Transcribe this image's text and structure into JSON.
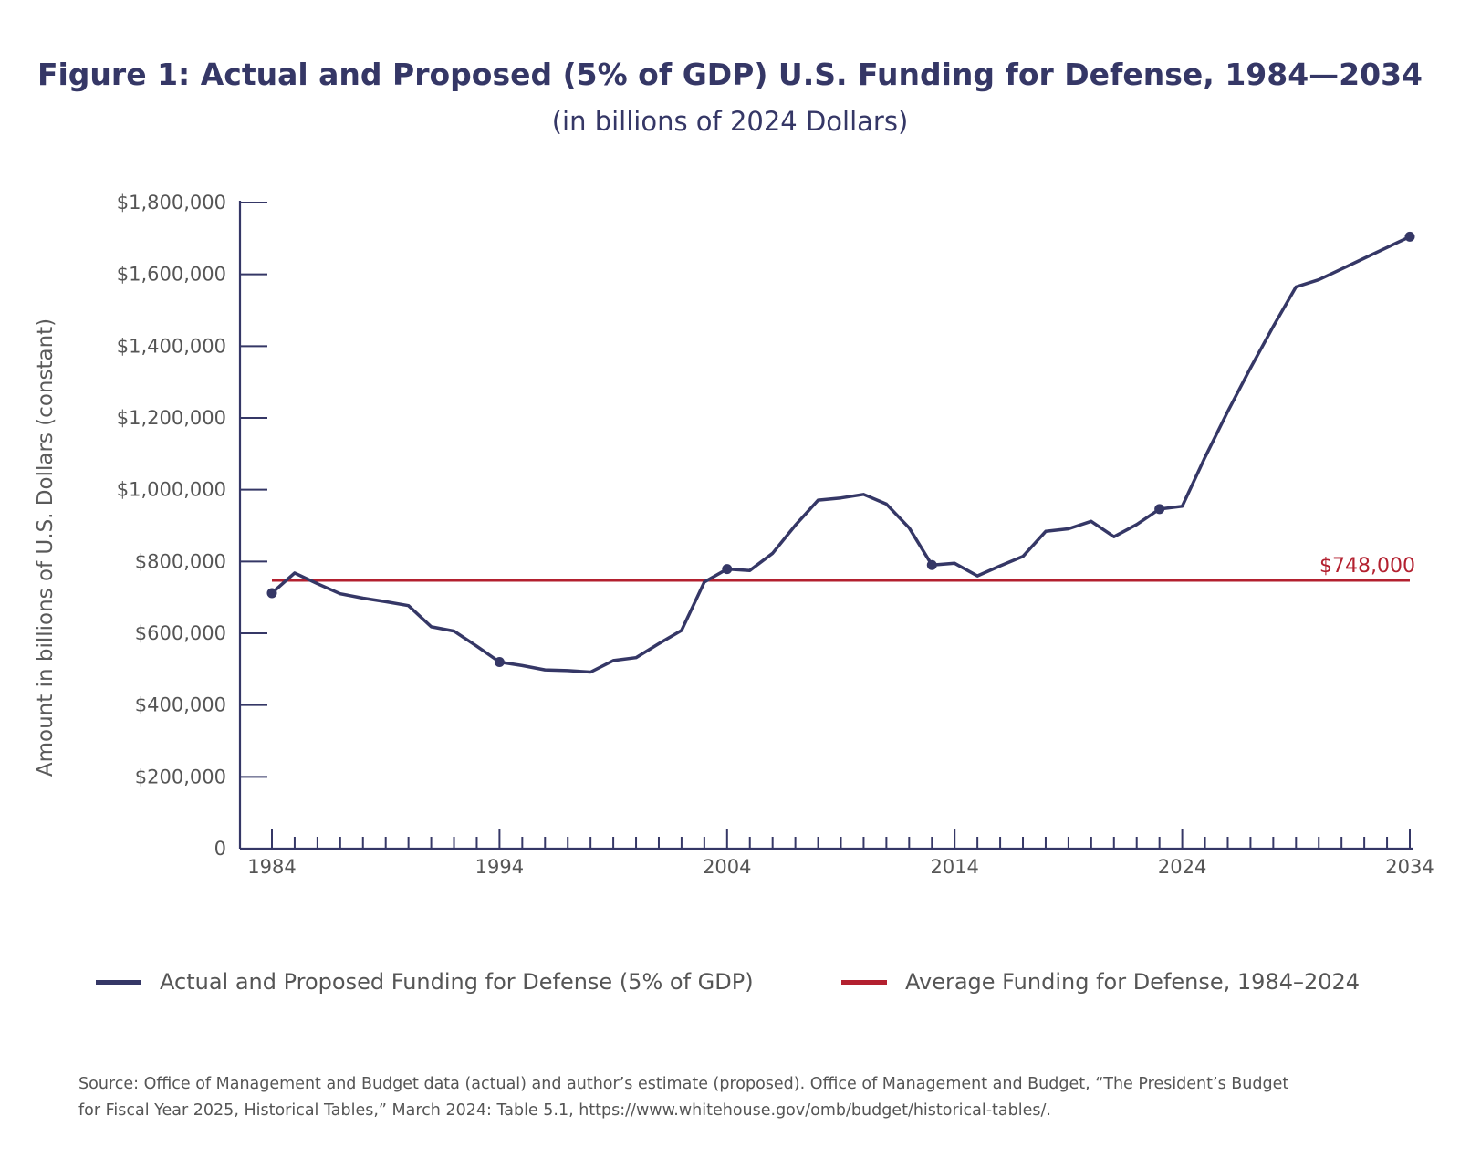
{
  "title": "Figure 1: Actual and Proposed (5% of GDP) U.S. Funding for Defense, 1984—2034",
  "subtitle": "(in billions of 2024 Dollars)",
  "legend": {
    "series_label": "Actual and Proposed Funding for Defense (5% of GDP)",
    "average_label": "Average Funding for Defense, 1984–2024"
  },
  "source": {
    "line1": "Source: Office of Management and Budget data (actual) and author’s estimate (proposed). Office of Management and Budget, “The President’s Budget",
    "line2": "for Fiscal Year 2025, Historical Tables,” March 2024: Table 5.1, https://www.whitehouse.gov/omb/budget/historical-tables/."
  },
  "colors": {
    "series": "#353766",
    "average": "#b3202f",
    "axis": "#353766",
    "text": "#555555"
  },
  "chart_data": {
    "type": "line",
    "ylabel": "Amount in billions of U.S. Dollars (constant)",
    "xlabel": "",
    "xlim": [
      1984,
      2034
    ],
    "ylim": [
      0,
      1800000
    ],
    "x_ticks": [
      "1984",
      "1994",
      "2004",
      "2014",
      "2024",
      "2034"
    ],
    "y_ticks": [
      "0",
      "$200,000",
      "$400,000",
      "$600,000",
      "$800,000",
      "$1,000,000",
      "$1,200,000",
      "$1,400,000",
      "$1,600,000",
      "$1,800,000"
    ],
    "grid": false,
    "legend_position": "bottom",
    "series": [
      {
        "name": "Actual and Proposed Funding for Defense (5% of GDP)",
        "x": [
          1984,
          1985,
          1986,
          1987,
          1988,
          1989,
          1990,
          1991,
          1992,
          1993,
          1994,
          1995,
          1996,
          1997,
          1998,
          1999,
          2000,
          2001,
          2002,
          2003,
          2004,
          2005,
          2006,
          2007,
          2008,
          2009,
          2010,
          2011,
          2012,
          2013,
          2014,
          2015,
          2016,
          2017,
          2018,
          2019,
          2020,
          2021,
          2022,
          2023,
          2024,
          2025,
          2026,
          2027,
          2028,
          2029,
          2030,
          2031,
          2032,
          2033,
          2034
        ],
        "values": [
          712000,
          768000,
          738000,
          710000,
          698000,
          688000,
          677000,
          618000,
          606000,
          564000,
          520000,
          510000,
          498000,
          496000,
          492000,
          524000,
          532000,
          571000,
          608000,
          743000,
          779000,
          775000,
          823000,
          901000,
          971000,
          977000,
          987000,
          960000,
          894000,
          790000,
          795000,
          760000,
          788000,
          814000,
          884000,
          891000,
          912000,
          869000,
          903000,
          946000,
          954000,
          1090000,
          1218000,
          1339000,
          1455000,
          1565000,
          1585000,
          1615000,
          1645000,
          1675000,
          1705000
        ],
        "markers_at": [
          1984,
          1994,
          2004,
          2013,
          2023,
          2034
        ]
      },
      {
        "name": "Average Funding for Defense, 1984–2024",
        "x": [
          1984,
          2034
        ],
        "values": [
          748000,
          748000
        ],
        "label": "$748,000"
      }
    ]
  }
}
